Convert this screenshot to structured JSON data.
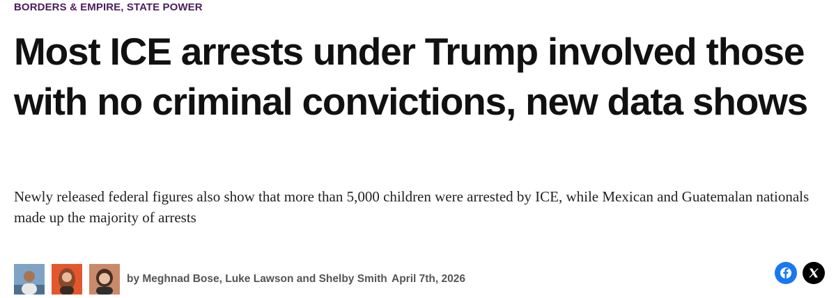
{
  "kicker": "BORDERS & EMPIRE, STATE POWER",
  "headline": "Most ICE arrests under Trump involved those with no criminal convictions, new data shows",
  "dek": "Newly released federal figures also show that more than 5,000 children were arrested by ICE, while Mexican and Guatemalan nationals made up the majority of arrests",
  "byline": "by Meghnad Bose, Luke Lawson and Shelby Smith",
  "date": "April 7th, 2026"
}
